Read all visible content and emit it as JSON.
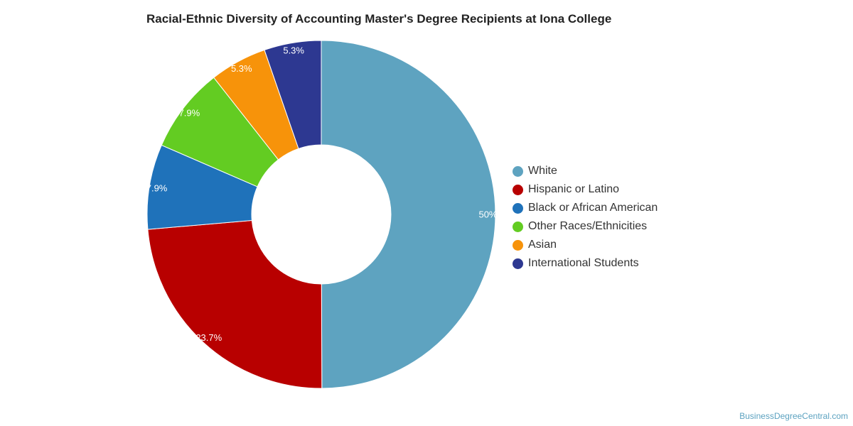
{
  "chart_data": {
    "type": "pie",
    "title": "Racial-Ethnic Diversity of Accounting Master's Degree Recipients at Iona College",
    "donut": true,
    "legend_position": "right",
    "slices": [
      {
        "label": "White",
        "value": 50,
        "display": "50%",
        "color": "#5ea3c0"
      },
      {
        "label": "Hispanic or Latino",
        "value": 23.7,
        "display": "23.7%",
        "color": "#b80000"
      },
      {
        "label": "Black or African American",
        "value": 7.9,
        "display": "7.9%",
        "color": "#1f72ba"
      },
      {
        "label": "Other Races/Ethnicities",
        "value": 7.9,
        "display": "7.9%",
        "color": "#63cc22"
      },
      {
        "label": "Asian",
        "value": 5.3,
        "display": "5.3%",
        "color": "#f7930a"
      },
      {
        "label": "International Students",
        "value": 5.3,
        "display": "5.3%",
        "color": "#2d3891"
      }
    ]
  },
  "source": "BusinessDegreeCentral.com"
}
